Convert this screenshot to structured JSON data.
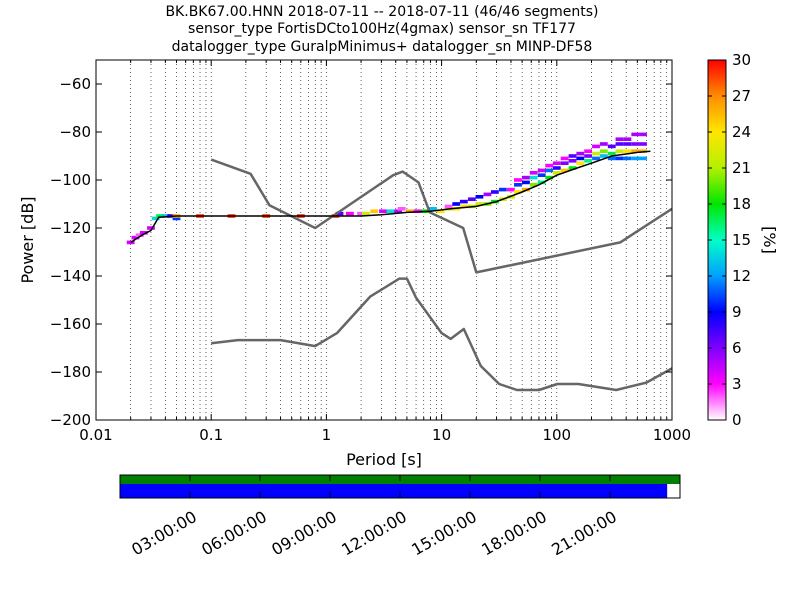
{
  "chart_data": [
    {
      "type": "line",
      "title_lines": [
        "BK.BK67.00.HNN   2018-07-11 -- 2018-07-11  (46/46 segments)",
        "sensor_type FortisDCto100Hz(4gmax) sensor_sn TF177",
        "datalogger_type GuralpMinimus+ datalogger_sn MINP-DF58"
      ],
      "xlabel": "Period [s]",
      "ylabel": "Power [dB]",
      "xscale": "log",
      "xlim": [
        0.01,
        1000
      ],
      "ylim": [
        -200,
        -50
      ],
      "xticks": [
        {
          "value": 0.01,
          "label": "0.01"
        },
        {
          "value": 0.1,
          "label": "0.1"
        },
        {
          "value": 1,
          "label": "1"
        },
        {
          "value": 10,
          "label": "10"
        },
        {
          "value": 100,
          "label": "100"
        },
        {
          "value": 1000,
          "label": "1000"
        }
      ],
      "yticks": [
        {
          "value": -60,
          "label": "−60"
        },
        {
          "value": -80,
          "label": "−80"
        },
        {
          "value": -100,
          "label": "−100"
        },
        {
          "value": -120,
          "label": "−120"
        },
        {
          "value": -140,
          "label": "−140"
        },
        {
          "value": -160,
          "label": "−160"
        },
        {
          "value": -180,
          "label": "−180"
        },
        {
          "value": -200,
          "label": "−200"
        }
      ],
      "grid": "dotted vertical",
      "colorbar": {
        "label": "[%]",
        "range": [
          0,
          30
        ],
        "ticks": [
          {
            "value": 0,
            "label": "0"
          },
          {
            "value": 3,
            "label": "3"
          },
          {
            "value": 6,
            "label": "6"
          },
          {
            "value": 9,
            "label": "9"
          },
          {
            "value": 12,
            "label": "12"
          },
          {
            "value": 15,
            "label": "15"
          },
          {
            "value": 18,
            "label": "18"
          },
          {
            "value": 21,
            "label": "21"
          },
          {
            "value": 24,
            "label": "24"
          },
          {
            "value": 27,
            "label": "27"
          },
          {
            "value": 30,
            "label": "30"
          }
        ],
        "colors": [
          "#ffffff",
          "#ff00ff",
          "#8000ff",
          "#0000ff",
          "#00a0ff",
          "#00ffc8",
          "#00e600",
          "#b4f000",
          "#ffe600",
          "#ff8c00",
          "#ff0000"
        ]
      },
      "series": [
        {
          "role": "NHNM",
          "color": "#666666",
          "points": [
            [
              0.1,
              -91.5
            ],
            [
              0.22,
              -97.4
            ],
            [
              0.32,
              -110.5
            ],
            [
              0.8,
              -120
            ],
            [
              3.8,
              -98
            ],
            [
              4.6,
              -96.5
            ],
            [
              6.3,
              -101
            ],
            [
              7.9,
              -113.5
            ],
            [
              15.4,
              -120
            ],
            [
              20,
              -138.5
            ],
            [
              354.8,
              -126
            ],
            [
              1000,
              -112
            ]
          ]
        },
        {
          "role": "NLNM",
          "color": "#666666",
          "points": [
            [
              0.1,
              -168
            ],
            [
              0.17,
              -166.7
            ],
            [
              0.4,
              -166.7
            ],
            [
              0.8,
              -169.2
            ],
            [
              1.24,
              -163.7
            ],
            [
              2.4,
              -148.6
            ],
            [
              4.3,
              -141.1
            ],
            [
              5,
              -141.1
            ],
            [
              6,
              -149
            ],
            [
              10,
              -163.8
            ],
            [
              12,
              -166.2
            ],
            [
              15.6,
              -162.1
            ],
            [
              21.9,
              -177.5
            ],
            [
              31.6,
              -185
            ],
            [
              45,
              -187.5
            ],
            [
              70,
              -187.5
            ],
            [
              101,
              -185
            ],
            [
              154,
              -185
            ],
            [
              328,
              -187.5
            ],
            [
              600,
              -184.4
            ],
            [
              1000,
              -178.5
            ]
          ]
        },
        {
          "role": "mean",
          "color": "#000000",
          "points": [
            [
              0.02,
              -126
            ],
            [
              0.025,
              -123
            ],
            [
              0.03,
              -121
            ],
            [
              0.035,
              -115.5
            ],
            [
              0.05,
              -115
            ],
            [
              0.1,
              -115
            ],
            [
              0.3,
              -115
            ],
            [
              1,
              -115
            ],
            [
              2,
              -115
            ],
            [
              3,
              -114.5
            ],
            [
              5,
              -113.5
            ],
            [
              8,
              -113
            ],
            [
              12,
              -112
            ],
            [
              20,
              -111
            ],
            [
              30,
              -109
            ],
            [
              50,
              -105
            ],
            [
              70,
              -102
            ],
            [
              100,
              -98
            ],
            [
              150,
              -95
            ],
            [
              200,
              -93
            ],
            [
              300,
              -90
            ],
            [
              500,
              -88.5
            ],
            [
              650,
              -88
            ]
          ]
        }
      ],
      "histogram_bins": [
        {
          "period": 0.02,
          "power": -126,
          "pct": 4
        },
        {
          "period": 0.022,
          "power": -124,
          "pct": 4
        },
        {
          "period": 0.024,
          "power": -123,
          "pct": 2
        },
        {
          "period": 0.026,
          "power": -122,
          "pct": 4
        },
        {
          "period": 0.03,
          "power": -120,
          "pct": 4
        },
        {
          "period": 0.033,
          "power": -116,
          "pct": 14
        },
        {
          "period": 0.036,
          "power": -115,
          "pct": 17
        },
        {
          "period": 0.04,
          "power": -115,
          "pct": 13
        },
        {
          "period": 0.045,
          "power": -115,
          "pct": 8
        },
        {
          "period": 0.05,
          "power": -116,
          "pct": 10
        },
        {
          "period": 0.05,
          "power": -115,
          "pct": 26
        },
        {
          "period": 0.08,
          "power": -115,
          "pct": 29
        },
        {
          "period": 0.15,
          "power": -115,
          "pct": 29
        },
        {
          "period": 0.3,
          "power": -115,
          "pct": 29
        },
        {
          "period": 0.6,
          "power": -115,
          "pct": 29
        },
        {
          "period": 1.2,
          "power": -115,
          "pct": 29
        },
        {
          "period": 1.3,
          "power": -114,
          "pct": 7
        },
        {
          "period": 1.6,
          "power": -114,
          "pct": 3
        },
        {
          "period": 2.0,
          "power": -114,
          "pct": 2
        },
        {
          "period": 2.2,
          "power": -114,
          "pct": 22
        },
        {
          "period": 2.6,
          "power": -113,
          "pct": 25
        },
        {
          "period": 3.1,
          "power": -113,
          "pct": 4
        },
        {
          "period": 3.6,
          "power": -113,
          "pct": 14
        },
        {
          "period": 4.2,
          "power": -113,
          "pct": 5
        },
        {
          "period": 4.5,
          "power": -112,
          "pct": 2
        },
        {
          "period": 5.3,
          "power": -113,
          "pct": 26
        },
        {
          "period": 6.2,
          "power": -113,
          "pct": 3
        },
        {
          "period": 7.2,
          "power": -113,
          "pct": 18
        },
        {
          "period": 8.4,
          "power": -112,
          "pct": 13
        },
        {
          "period": 9.8,
          "power": -113,
          "pct": 24
        },
        {
          "period": 11.5,
          "power": -112,
          "pct": 22
        },
        {
          "period": 11.5,
          "power": -111,
          "pct": 2
        },
        {
          "period": 13.4,
          "power": -112,
          "pct": 24
        },
        {
          "period": 13.4,
          "power": -110,
          "pct": 9
        },
        {
          "period": 15.6,
          "power": -111,
          "pct": 24
        },
        {
          "period": 15.6,
          "power": -109,
          "pct": 8
        },
        {
          "period": 18.3,
          "power": -111,
          "pct": 22
        },
        {
          "period": 18.3,
          "power": -108,
          "pct": 7
        },
        {
          "period": 21.3,
          "power": -110,
          "pct": 22
        },
        {
          "period": 21.3,
          "power": -107,
          "pct": 9
        },
        {
          "period": 25,
          "power": -110,
          "pct": 20
        },
        {
          "period": 25,
          "power": -106,
          "pct": 5
        },
        {
          "period": 29,
          "power": -109,
          "pct": 18
        },
        {
          "period": 29,
          "power": -105,
          "pct": 8
        },
        {
          "period": 34,
          "power": -108,
          "pct": 22
        },
        {
          "period": 34,
          "power": -104,
          "pct": 10
        },
        {
          "period": 40,
          "power": -107,
          "pct": 22
        },
        {
          "period": 40,
          "power": -104,
          "pct": 3
        },
        {
          "period": 46,
          "power": -105,
          "pct": 24
        },
        {
          "period": 46,
          "power": -102,
          "pct": 10
        },
        {
          "period": 46,
          "power": -100,
          "pct": 3
        },
        {
          "period": 54,
          "power": -104,
          "pct": 26
        },
        {
          "period": 54,
          "power": -101,
          "pct": 9
        },
        {
          "period": 54,
          "power": -99,
          "pct": 5
        },
        {
          "period": 63,
          "power": -102,
          "pct": 20
        },
        {
          "period": 63,
          "power": -99,
          "pct": 14
        },
        {
          "period": 63,
          "power": -97,
          "pct": 4
        },
        {
          "period": 74,
          "power": -101,
          "pct": 16
        },
        {
          "period": 74,
          "power": -98,
          "pct": 10
        },
        {
          "period": 74,
          "power": -96,
          "pct": 4
        },
        {
          "period": 86,
          "power": -99,
          "pct": 18
        },
        {
          "period": 86,
          "power": -96,
          "pct": 11
        },
        {
          "period": 86,
          "power": -94,
          "pct": 3
        },
        {
          "period": 100,
          "power": -97,
          "pct": 22
        },
        {
          "period": 100,
          "power": -95,
          "pct": 8
        },
        {
          "period": 100,
          "power": -93,
          "pct": 4
        },
        {
          "period": 117,
          "power": -96,
          "pct": 25
        },
        {
          "period": 117,
          "power": -93,
          "pct": 6
        },
        {
          "period": 117,
          "power": -91,
          "pct": 3
        },
        {
          "period": 137,
          "power": -95,
          "pct": 18
        },
        {
          "period": 137,
          "power": -92,
          "pct": 6
        },
        {
          "period": 137,
          "power": -90,
          "pct": 7
        },
        {
          "period": 160,
          "power": -93,
          "pct": 24
        },
        {
          "period": 160,
          "power": -91,
          "pct": 9
        },
        {
          "period": 160,
          "power": -89,
          "pct": 5
        },
        {
          "period": 187,
          "power": -92,
          "pct": 16
        },
        {
          "period": 187,
          "power": -90,
          "pct": 6
        },
        {
          "period": 187,
          "power": -88,
          "pct": 3
        },
        {
          "period": 219,
          "power": -91,
          "pct": 11
        },
        {
          "period": 219,
          "power": -89,
          "pct": 22
        },
        {
          "period": 219,
          "power": -86,
          "pct": 4
        },
        {
          "period": 256,
          "power": -90,
          "pct": 13
        },
        {
          "period": 256,
          "power": -88,
          "pct": 20
        },
        {
          "period": 256,
          "power": -85,
          "pct": 5
        },
        {
          "period": 300,
          "power": -91,
          "pct": 11
        },
        {
          "period": 300,
          "power": -89,
          "pct": 17
        },
        {
          "period": 300,
          "power": -86,
          "pct": 7
        },
        {
          "period": 350,
          "power": -91,
          "pct": 10
        },
        {
          "period": 350,
          "power": -88,
          "pct": 22
        },
        {
          "period": 350,
          "power": -85,
          "pct": 7
        },
        {
          "period": 350,
          "power": -83,
          "pct": 5
        },
        {
          "period": 410,
          "power": -91,
          "pct": 11
        },
        {
          "period": 410,
          "power": -88,
          "pct": 24
        },
        {
          "period": 410,
          "power": -85,
          "pct": 7
        },
        {
          "period": 410,
          "power": -83,
          "pct": 5
        },
        {
          "period": 480,
          "power": -91,
          "pct": 12
        },
        {
          "period": 480,
          "power": -88,
          "pct": 26
        },
        {
          "period": 480,
          "power": -85,
          "pct": 6
        },
        {
          "period": 480,
          "power": -81,
          "pct": 5
        },
        {
          "period": 560,
          "power": -91,
          "pct": 12
        },
        {
          "period": 560,
          "power": -88,
          "pct": 26
        },
        {
          "period": 560,
          "power": -85,
          "pct": 6
        },
        {
          "period": 560,
          "power": -81,
          "pct": 5
        }
      ],
      "hist_bin_width_decades": 0.068
    },
    {
      "type": "timeline",
      "xticks": [
        {
          "value": 3,
          "label": "03:00:00"
        },
        {
          "value": 6,
          "label": "06:00:00"
        },
        {
          "value": 9,
          "label": "09:00:00"
        },
        {
          "value": 12,
          "label": "12:00:00"
        },
        {
          "value": 15,
          "label": "15:00:00"
        },
        {
          "value": 18,
          "label": "18:00:00"
        },
        {
          "value": 21,
          "label": "21:00:00"
        }
      ],
      "range_hours": [
        0,
        24
      ],
      "rows": [
        {
          "role": "data_coverage",
          "color": "#008000",
          "segments": [
            [
              0,
              24
            ]
          ]
        },
        {
          "role": "psd_coverage",
          "color": "#0000ff",
          "segments": [
            [
              0,
              23.45
            ]
          ]
        }
      ]
    }
  ]
}
